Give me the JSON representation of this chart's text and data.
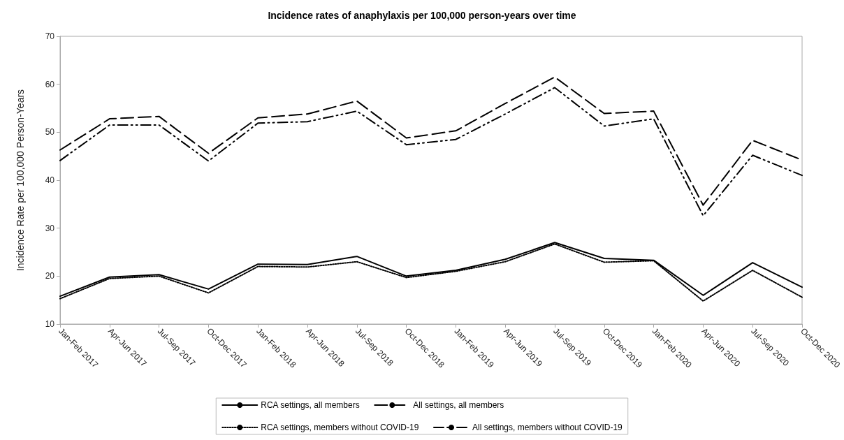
{
  "chart_data": {
    "type": "line",
    "title": "Incidence rates of anaphylaxis per 100,000 person-years over time",
    "ylabel": "Incidence Rate per 100,000 Person-Years",
    "categories": [
      "Jan-Feb 2017",
      "Apr-Jun 2017",
      "Jul-Sep 2017",
      "Oct-Dec 2017",
      "Jan-Feb 2018",
      "Apr-Jun 2018",
      "Jul-Sep 2018",
      "Oct-Dec 2018",
      "Jan-Feb 2019",
      "Apr-Jun 2019",
      "Jul-Sep 2019",
      "Oct-Dec 2019",
      "Jan-Feb 2020",
      "Apr-Jun 2020",
      "Jul-Sep 2020",
      "Oct-Dec 2020"
    ],
    "series": [
      {
        "name": "RCA settings, all members",
        "color": "#000000",
        "line_style": "solid",
        "values": [
          15.8,
          19.8,
          20.3,
          17.3,
          22.5,
          22.4,
          24.1,
          20.0,
          21.2,
          23.5,
          27.0,
          23.7,
          23.3,
          16.0,
          22.8,
          17.7
        ]
      },
      {
        "name": "All settings, all members",
        "color": "#000000",
        "line_style": "dashed",
        "values": [
          46.3,
          52.8,
          53.3,
          45.6,
          53.0,
          53.8,
          56.5,
          48.8,
          50.3,
          56.0,
          61.5,
          53.9,
          54.4,
          34.8,
          48.3,
          44.2
        ]
      },
      {
        "name": "RCA settings, members without COVID-19",
        "color": "#000000",
        "line_style": "dotted",
        "values": [
          15.3,
          19.5,
          20.0,
          16.5,
          22.0,
          21.9,
          23.0,
          19.7,
          21.0,
          23.0,
          26.7,
          22.9,
          23.2,
          14.8,
          21.2,
          15.6
        ]
      },
      {
        "name": "All settings, members without COVID-19",
        "color": "#000000",
        "line_style": "dashdot",
        "values": [
          44.1,
          51.5,
          51.5,
          44.0,
          51.9,
          52.2,
          54.4,
          47.4,
          48.5,
          53.8,
          59.3,
          51.3,
          52.8,
          32.6,
          45.2,
          41.0
        ]
      }
    ],
    "ylim": [
      10,
      70
    ],
    "yticks": [
      10,
      20,
      30,
      40,
      50,
      60,
      70
    ],
    "grid": false,
    "legend": "bottom",
    "marker": "none"
  }
}
